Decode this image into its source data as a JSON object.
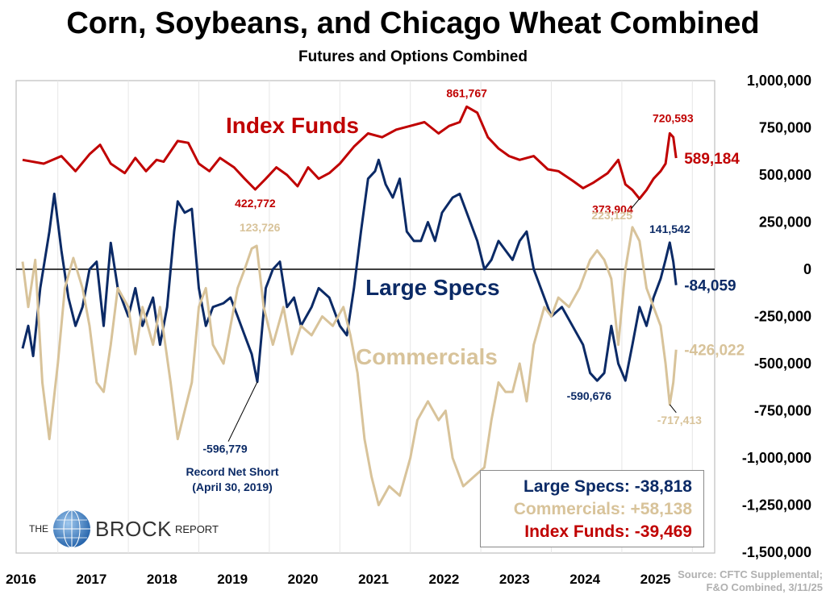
{
  "header": {
    "title": "Corn, Soybeans, and Chicago Wheat Combined",
    "subtitle": "Futures and Options Combined"
  },
  "colors": {
    "index": "#c00000",
    "large": "#0b2a66",
    "commercial": "#d8c39a",
    "frame": "#bfbfbf"
  },
  "chart_data": {
    "type": "line",
    "x_ticks": [
      "2016",
      "2017",
      "2018",
      "2019",
      "2020",
      "2021",
      "2022",
      "2023",
      "2024",
      "2025"
    ],
    "y_ticks": [
      "1,000,000",
      "750,000",
      "500,000",
      "250,000",
      "0",
      "-250,000",
      "-500,000",
      "-750,000",
      "-1,000,000",
      "-1,250,000",
      "-1,500,000"
    ],
    "ylim": [
      -1500000,
      1000000
    ],
    "xlim": [
      2016.0,
      2025.45
    ],
    "series": [
      {
        "name": "Index Funds",
        "key": "index",
        "last_value": "589,184",
        "points": [
          [
            2016.0,
            580000
          ],
          [
            2016.3,
            560000
          ],
          [
            2016.55,
            600000
          ],
          [
            2016.75,
            520000
          ],
          [
            2016.95,
            610000
          ],
          [
            2017.1,
            660000
          ],
          [
            2017.25,
            560000
          ],
          [
            2017.45,
            510000
          ],
          [
            2017.6,
            590000
          ],
          [
            2017.75,
            520000
          ],
          [
            2017.9,
            580000
          ],
          [
            2018.0,
            570000
          ],
          [
            2018.2,
            680000
          ],
          [
            2018.35,
            670000
          ],
          [
            2018.5,
            560000
          ],
          [
            2018.65,
            520000
          ],
          [
            2018.8,
            590000
          ],
          [
            2019.0,
            540000
          ],
          [
            2019.15,
            480000
          ],
          [
            2019.3,
            423000
          ],
          [
            2019.45,
            480000
          ],
          [
            2019.6,
            540000
          ],
          [
            2019.75,
            500000
          ],
          [
            2019.9,
            440000
          ],
          [
            2020.05,
            540000
          ],
          [
            2020.2,
            480000
          ],
          [
            2020.35,
            510000
          ],
          [
            2020.5,
            560000
          ],
          [
            2020.7,
            650000
          ],
          [
            2020.9,
            720000
          ],
          [
            2021.1,
            700000
          ],
          [
            2021.3,
            740000
          ],
          [
            2021.5,
            760000
          ],
          [
            2021.7,
            780000
          ],
          [
            2021.9,
            720000
          ],
          [
            2022.05,
            760000
          ],
          [
            2022.2,
            780000
          ],
          [
            2022.3,
            861767
          ],
          [
            2022.45,
            830000
          ],
          [
            2022.6,
            700000
          ],
          [
            2022.75,
            640000
          ],
          [
            2022.9,
            600000
          ],
          [
            2023.05,
            580000
          ],
          [
            2023.25,
            600000
          ],
          [
            2023.45,
            530000
          ],
          [
            2023.6,
            520000
          ],
          [
            2023.8,
            470000
          ],
          [
            2023.95,
            430000
          ],
          [
            2024.1,
            460000
          ],
          [
            2024.3,
            510000
          ],
          [
            2024.45,
            580000
          ],
          [
            2024.55,
            450000
          ],
          [
            2024.65,
            420000
          ],
          [
            2024.75,
            374000
          ],
          [
            2024.85,
            420000
          ],
          [
            2024.95,
            480000
          ],
          [
            2025.05,
            520000
          ],
          [
            2025.12,
            560000
          ],
          [
            2025.18,
            720593
          ],
          [
            2025.23,
            700000
          ],
          [
            2025.27,
            589184
          ]
        ]
      },
      {
        "name": "Large Specs",
        "key": "large",
        "last_value": "-84,059",
        "points": [
          [
            2016.0,
            -420000
          ],
          [
            2016.08,
            -300000
          ],
          [
            2016.15,
            -460000
          ],
          [
            2016.25,
            -100000
          ],
          [
            2016.38,
            200000
          ],
          [
            2016.45,
            400000
          ],
          [
            2016.55,
            100000
          ],
          [
            2016.65,
            -150000
          ],
          [
            2016.75,
            -300000
          ],
          [
            2016.85,
            -200000
          ],
          [
            2016.95,
            0
          ],
          [
            2017.05,
            40000
          ],
          [
            2017.15,
            -300000
          ],
          [
            2017.25,
            140000
          ],
          [
            2017.35,
            -100000
          ],
          [
            2017.5,
            -250000
          ],
          [
            2017.6,
            -100000
          ],
          [
            2017.7,
            -300000
          ],
          [
            2017.85,
            -150000
          ],
          [
            2017.95,
            -400000
          ],
          [
            2018.05,
            -200000
          ],
          [
            2018.15,
            200000
          ],
          [
            2018.2,
            360000
          ],
          [
            2018.3,
            300000
          ],
          [
            2018.4,
            320000
          ],
          [
            2018.5,
            -100000
          ],
          [
            2018.6,
            -300000
          ],
          [
            2018.7,
            -200000
          ],
          [
            2018.85,
            -180000
          ],
          [
            2018.95,
            -150000
          ],
          [
            2019.05,
            -250000
          ],
          [
            2019.15,
            -350000
          ],
          [
            2019.25,
            -450000
          ],
          [
            2019.33,
            -596779
          ],
          [
            2019.45,
            -100000
          ],
          [
            2019.55,
            0
          ],
          [
            2019.65,
            40000
          ],
          [
            2019.75,
            -200000
          ],
          [
            2019.85,
            -150000
          ],
          [
            2019.95,
            -300000
          ],
          [
            2020.1,
            -200000
          ],
          [
            2020.2,
            -100000
          ],
          [
            2020.35,
            -150000
          ],
          [
            2020.5,
            -300000
          ],
          [
            2020.6,
            -350000
          ],
          [
            2020.7,
            -100000
          ],
          [
            2020.8,
            200000
          ],
          [
            2020.9,
            480000
          ],
          [
            2021.0,
            520000
          ],
          [
            2021.05,
            580000
          ],
          [
            2021.15,
            450000
          ],
          [
            2021.25,
            380000
          ],
          [
            2021.35,
            480000
          ],
          [
            2021.45,
            200000
          ],
          [
            2021.55,
            150000
          ],
          [
            2021.65,
            150000
          ],
          [
            2021.75,
            250000
          ],
          [
            2021.85,
            150000
          ],
          [
            2021.95,
            300000
          ],
          [
            2022.1,
            380000
          ],
          [
            2022.2,
            400000
          ],
          [
            2022.35,
            250000
          ],
          [
            2022.45,
            150000
          ],
          [
            2022.55,
            0
          ],
          [
            2022.65,
            50000
          ],
          [
            2022.75,
            150000
          ],
          [
            2022.85,
            100000
          ],
          [
            2022.95,
            50000
          ],
          [
            2023.05,
            150000
          ],
          [
            2023.15,
            200000
          ],
          [
            2023.25,
            0
          ],
          [
            2023.35,
            -100000
          ],
          [
            2023.5,
            -250000
          ],
          [
            2023.65,
            -200000
          ],
          [
            2023.8,
            -300000
          ],
          [
            2023.95,
            -400000
          ],
          [
            2024.05,
            -550000
          ],
          [
            2024.15,
            -590676
          ],
          [
            2024.25,
            -550000
          ],
          [
            2024.35,
            -300000
          ],
          [
            2024.45,
            -500000
          ],
          [
            2024.55,
            -590000
          ],
          [
            2024.65,
            -400000
          ],
          [
            2024.75,
            -200000
          ],
          [
            2024.85,
            -300000
          ],
          [
            2024.95,
            -150000
          ],
          [
            2025.05,
            -50000
          ],
          [
            2025.12,
            50000
          ],
          [
            2025.18,
            141542
          ],
          [
            2025.23,
            40000
          ],
          [
            2025.27,
            -84059
          ]
        ]
      },
      {
        "name": "Commercials",
        "key": "commercial",
        "last_value": "-426,022",
        "points": [
          [
            2016.0,
            40000
          ],
          [
            2016.08,
            -200000
          ],
          [
            2016.18,
            50000
          ],
          [
            2016.28,
            -600000
          ],
          [
            2016.38,
            -900000
          ],
          [
            2016.5,
            -500000
          ],
          [
            2016.6,
            -100000
          ],
          [
            2016.72,
            60000
          ],
          [
            2016.85,
            -100000
          ],
          [
            2016.95,
            -300000
          ],
          [
            2017.05,
            -600000
          ],
          [
            2017.15,
            -650000
          ],
          [
            2017.25,
            -400000
          ],
          [
            2017.35,
            -100000
          ],
          [
            2017.5,
            -200000
          ],
          [
            2017.6,
            -450000
          ],
          [
            2017.7,
            -200000
          ],
          [
            2017.85,
            -400000
          ],
          [
            2017.95,
            -200000
          ],
          [
            2018.1,
            -600000
          ],
          [
            2018.2,
            -900000
          ],
          [
            2018.3,
            -750000
          ],
          [
            2018.4,
            -600000
          ],
          [
            2018.5,
            -200000
          ],
          [
            2018.6,
            -100000
          ],
          [
            2018.7,
            -400000
          ],
          [
            2018.85,
            -500000
          ],
          [
            2018.95,
            -300000
          ],
          [
            2019.05,
            -100000
          ],
          [
            2019.15,
            0
          ],
          [
            2019.25,
            110000
          ],
          [
            2019.32,
            123726
          ],
          [
            2019.42,
            -200000
          ],
          [
            2019.55,
            -400000
          ],
          [
            2019.7,
            -200000
          ],
          [
            2019.82,
            -450000
          ],
          [
            2019.95,
            -300000
          ],
          [
            2020.1,
            -350000
          ],
          [
            2020.25,
            -250000
          ],
          [
            2020.4,
            -300000
          ],
          [
            2020.55,
            -200000
          ],
          [
            2020.65,
            -350000
          ],
          [
            2020.75,
            -550000
          ],
          [
            2020.85,
            -900000
          ],
          [
            2020.95,
            -1100000
          ],
          [
            2021.05,
            -1250000
          ],
          [
            2021.2,
            -1150000
          ],
          [
            2021.35,
            -1200000
          ],
          [
            2021.5,
            -1000000
          ],
          [
            2021.6,
            -800000
          ],
          [
            2021.75,
            -700000
          ],
          [
            2021.9,
            -800000
          ],
          [
            2022.0,
            -750000
          ],
          [
            2022.1,
            -1000000
          ],
          [
            2022.25,
            -1150000
          ],
          [
            2022.4,
            -1100000
          ],
          [
            2022.55,
            -1050000
          ],
          [
            2022.65,
            -800000
          ],
          [
            2022.75,
            -600000
          ],
          [
            2022.85,
            -650000
          ],
          [
            2022.95,
            -650000
          ],
          [
            2023.05,
            -500000
          ],
          [
            2023.15,
            -700000
          ],
          [
            2023.25,
            -400000
          ],
          [
            2023.4,
            -200000
          ],
          [
            2023.5,
            -250000
          ],
          [
            2023.6,
            -150000
          ],
          [
            2023.75,
            -200000
          ],
          [
            2023.9,
            -100000
          ],
          [
            2024.05,
            50000
          ],
          [
            2024.15,
            100000
          ],
          [
            2024.25,
            50000
          ],
          [
            2024.35,
            -50000
          ],
          [
            2024.45,
            -400000
          ],
          [
            2024.55,
            0
          ],
          [
            2024.65,
            223125
          ],
          [
            2024.75,
            150000
          ],
          [
            2024.85,
            -100000
          ],
          [
            2024.95,
            -200000
          ],
          [
            2025.05,
            -300000
          ],
          [
            2025.12,
            -500000
          ],
          [
            2025.18,
            -717413
          ],
          [
            2025.23,
            -600000
          ],
          [
            2025.27,
            -426022
          ]
        ]
      }
    ],
    "annotations": [
      {
        "key": "index",
        "text": "861,767",
        "x": 2022.3,
        "y": 861767
      },
      {
        "key": "index",
        "text": "720,593",
        "x": 2025.18,
        "y": 720593
      },
      {
        "key": "index",
        "text": "422,772",
        "x": 2019.3,
        "y": 422772
      },
      {
        "key": "index",
        "text": "373,904",
        "x": 2024.75,
        "y": 373904
      },
      {
        "key": "commercial",
        "text": "123,726",
        "x": 2019.32,
        "y": 123726
      },
      {
        "key": "commercial",
        "text": "223,125",
        "x": 2024.65,
        "y": 223125
      },
      {
        "key": "commercial",
        "text": "-717,413",
        "x": 2025.18,
        "y": -717413
      },
      {
        "key": "large",
        "text": "141,542",
        "x": 2025.18,
        "y": 141542
      },
      {
        "key": "large",
        "text": "-596,779",
        "x": 2019.33,
        "y": -596779
      },
      {
        "key": "large",
        "text": "-590,676",
        "x": 2024.15,
        "y": -590676
      }
    ],
    "record_note": [
      "Record Net Short",
      "(April 30, 2019)"
    ]
  },
  "change_box": [
    {
      "label": "Large Specs:",
      "value": "-38,818",
      "key": "large"
    },
    {
      "label": "Commercials:",
      "value": "+58,138",
      "key": "commercial"
    },
    {
      "label": "Index Funds:",
      "value": "-39,469",
      "key": "index"
    }
  ],
  "logo": {
    "the": "THE",
    "brock": "BROCK",
    "report": "REPORT"
  },
  "source": [
    "Source: CFTC Supplemental;",
    "F&O Combined, 3/11/25"
  ]
}
